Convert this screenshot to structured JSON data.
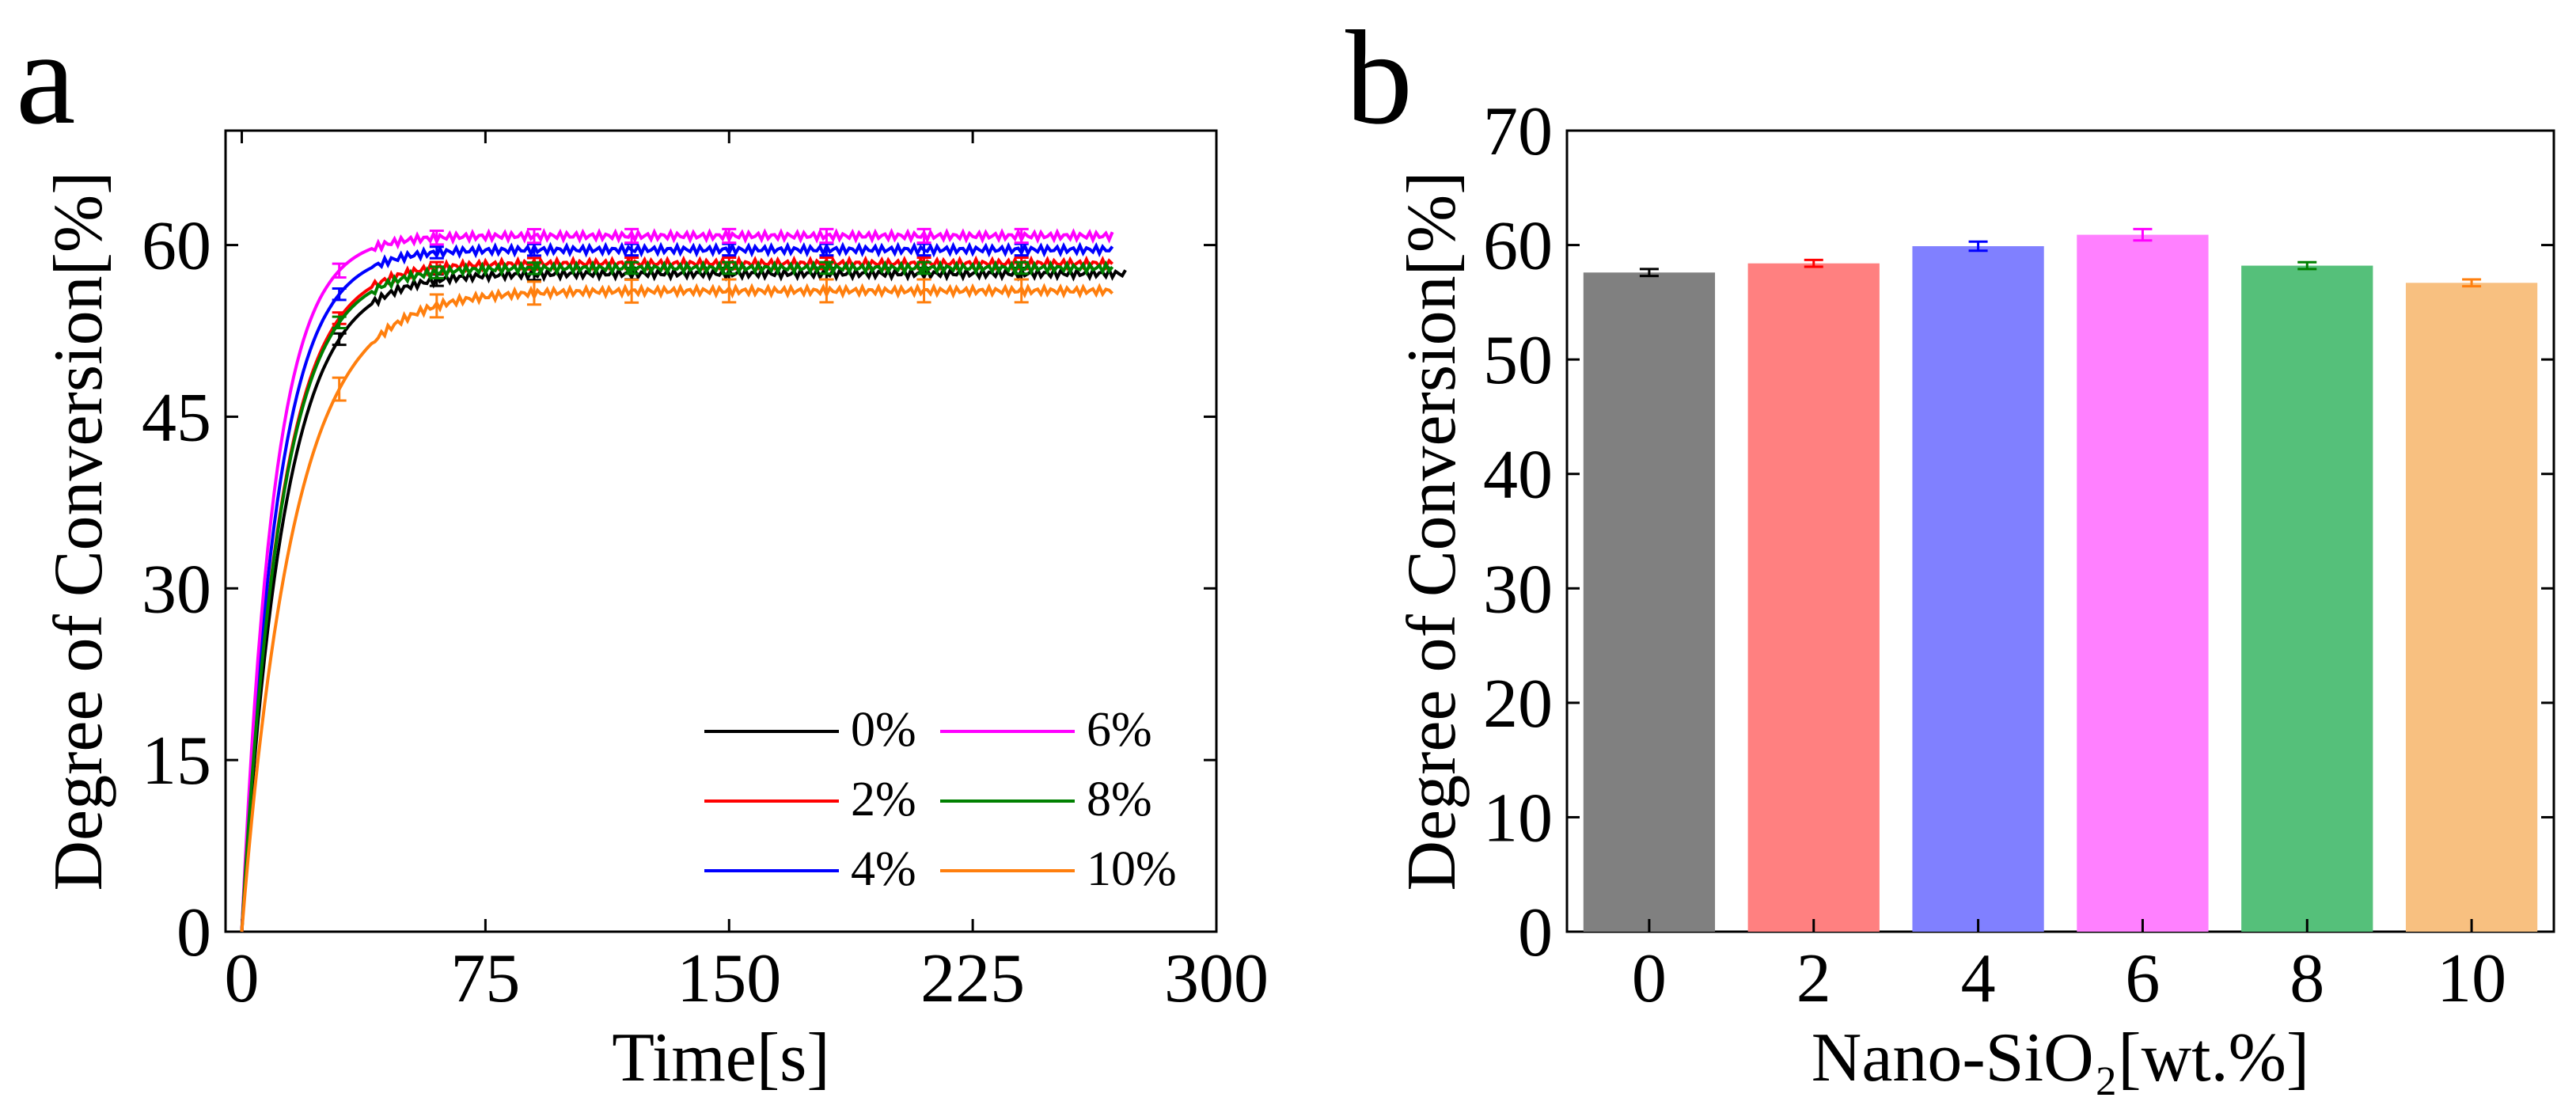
{
  "figure": {
    "panel_a_letter": "a",
    "panel_b_letter": "b"
  },
  "chart_data": [
    {
      "type": "line",
      "panel": "a",
      "title": "",
      "xlabel": "Time[s]",
      "ylabel": "Degree of Conversion[%]",
      "xlim": [
        -5,
        300
      ],
      "ylim": [
        0,
        70
      ],
      "xticks": [
        0,
        75,
        150,
        225,
        300
      ],
      "yticks": [
        0,
        15,
        30,
        45,
        60
      ],
      "legend_position": "bottom-right",
      "series": [
        {
          "name": "0%",
          "color": "#000000",
          "plateau": 57.5,
          "tau": 13,
          "end": 272,
          "error": 0.5
        },
        {
          "name": "2%",
          "color": "#ff0000",
          "plateau": 58.4,
          "tau": 12,
          "end": 268,
          "error": 0.5
        },
        {
          "name": "4%",
          "color": "#0000ff",
          "plateau": 59.6,
          "tau": 11,
          "end": 268,
          "error": 0.5
        },
        {
          "name": "6%",
          "color": "#ff00ff",
          "plateau": 60.8,
          "tau": 10,
          "end": 268,
          "error": 0.6
        },
        {
          "name": "8%",
          "color": "#008000",
          "plateau": 58.0,
          "tau": 12,
          "end": 268,
          "error": 0.5
        },
        {
          "name": "10%",
          "color": "#ff7f0e",
          "plateau": 56.0,
          "tau": 16,
          "end": 268,
          "error": 1.0
        }
      ],
      "error_bar_x": [
        30,
        60,
        90,
        120,
        150,
        180,
        210,
        240
      ]
    },
    {
      "type": "bar",
      "panel": "b",
      "title": "",
      "xlabel": "Nano-SiO₂[wt.%]",
      "ylabel": "Degree of Conversion[%]",
      "ylim": [
        0,
        70
      ],
      "yticks": [
        0,
        10,
        20,
        30,
        40,
        50,
        60,
        70
      ],
      "categories": [
        "0",
        "2",
        "4",
        "6",
        "8",
        "10"
      ],
      "values": [
        57.6,
        58.4,
        59.9,
        60.9,
        58.2,
        56.7
      ],
      "errors": [
        0.3,
        0.3,
        0.4,
        0.5,
        0.3,
        0.3
      ],
      "colors": [
        "#808080",
        "#ff8080",
        "#8080ff",
        "#ff80ff",
        "#55c07a",
        "#f8c080"
      ],
      "error_colors": [
        "#000000",
        "#ff0000",
        "#0000ff",
        "#ff00ff",
        "#008000",
        "#ff7f0e"
      ]
    }
  ]
}
